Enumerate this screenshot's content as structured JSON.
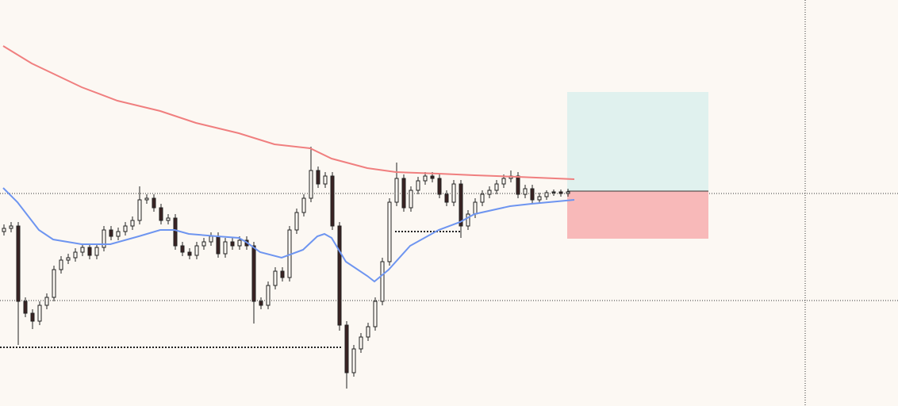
{
  "chart_data": {
    "type": "candlestick",
    "ylim": [
      0,
      512
    ],
    "candles": [
      [
        220,
        229,
        215,
        224
      ],
      [
        224,
        232,
        219,
        227
      ],
      [
        227,
        232,
        77,
        132
      ],
      [
        132,
        137,
        112,
        117
      ],
      [
        117,
        122,
        97,
        107
      ],
      [
        107,
        132,
        102,
        127
      ],
      [
        127,
        142,
        122,
        137
      ],
      [
        137,
        177,
        132,
        172
      ],
      [
        172,
        189,
        167,
        184
      ],
      [
        184,
        192,
        179,
        187
      ],
      [
        187,
        199,
        182,
        194
      ],
      [
        194,
        205,
        189,
        200
      ],
      [
        200,
        205,
        185,
        190
      ],
      [
        190,
        205,
        185,
        200
      ],
      [
        200,
        227,
        195,
        222
      ],
      [
        222,
        227,
        209,
        214
      ],
      [
        214,
        225,
        209,
        220
      ],
      [
        220,
        232,
        215,
        227
      ],
      [
        227,
        239,
        222,
        234
      ],
      [
        234,
        277,
        229,
        260
      ],
      [
        260,
        267,
        255,
        262
      ],
      [
        262,
        267,
        245,
        250
      ],
      [
        250,
        255,
        229,
        234
      ],
      [
        234,
        242,
        229,
        237
      ],
      [
        237,
        242,
        197,
        202
      ],
      [
        202,
        207,
        189,
        194
      ],
      [
        194,
        199,
        185,
        190
      ],
      [
        190,
        207,
        185,
        202
      ],
      [
        202,
        212,
        197,
        207
      ],
      [
        207,
        219,
        202,
        214
      ],
      [
        214,
        219,
        187,
        192
      ],
      [
        192,
        212,
        187,
        207
      ],
      [
        207,
        212,
        197,
        202
      ],
      [
        202,
        214,
        197,
        209
      ],
      [
        209,
        214,
        197,
        202
      ],
      [
        202,
        207,
        104,
        132
      ],
      [
        132,
        137,
        122,
        127
      ],
      [
        127,
        157,
        122,
        152
      ],
      [
        152,
        175,
        147,
        170
      ],
      [
        170,
        175,
        157,
        162
      ],
      [
        162,
        227,
        157,
        222
      ],
      [
        222,
        249,
        217,
        244
      ],
      [
        244,
        267,
        239,
        262
      ],
      [
        262,
        327,
        257,
        297
      ],
      [
        297,
        302,
        275,
        280
      ],
      [
        280,
        295,
        275,
        290
      ],
      [
        290,
        295,
        222,
        227
      ],
      [
        227,
        232,
        95,
        102
      ],
      [
        102,
        107,
        22,
        42
      ],
      [
        42,
        77,
        37,
        72
      ],
      [
        72,
        92,
        67,
        87
      ],
      [
        87,
        105,
        82,
        100
      ],
      [
        100,
        137,
        95,
        132
      ],
      [
        132,
        187,
        127,
        182
      ],
      [
        182,
        262,
        177,
        257
      ],
      [
        257,
        307,
        252,
        287
      ],
      [
        287,
        292,
        245,
        250
      ],
      [
        250,
        277,
        245,
        272
      ],
      [
        272,
        289,
        267,
        284
      ],
      [
        284,
        295,
        279,
        290
      ],
      [
        290,
        295,
        282,
        287
      ],
      [
        287,
        292,
        262,
        267
      ],
      [
        267,
        272,
        252,
        257
      ],
      [
        257,
        285,
        252,
        280
      ],
      [
        280,
        285,
        212,
        227
      ],
      [
        227,
        247,
        222,
        242
      ],
      [
        242,
        262,
        237,
        257
      ],
      [
        257,
        272,
        252,
        267
      ],
      [
        267,
        277,
        262,
        272
      ],
      [
        272,
        285,
        267,
        280
      ],
      [
        280,
        292,
        275,
        287
      ],
      [
        287,
        297,
        282,
        290
      ],
      [
        290,
        295,
        262,
        267
      ],
      [
        267,
        279,
        262,
        274
      ],
      [
        274,
        279,
        255,
        260
      ],
      [
        260,
        269,
        255,
        264
      ],
      [
        264,
        272,
        260,
        269
      ],
      [
        269,
        273,
        265,
        270
      ],
      [
        270,
        273,
        264,
        268
      ],
      [
        268,
        274,
        264,
        270
      ]
    ],
    "bull_color": "#fcf8f3",
    "bear_color": "#3b2323",
    "series": [
      {
        "color": "#f07f7f",
        "x": [
          0,
          4,
          11,
          16,
          22,
          27,
          33,
          38,
          43,
          46,
          51,
          55,
          61,
          66,
          72,
          80
        ],
        "values": [
          454,
          432,
          402,
          385,
          372,
          357,
          344,
          330,
          325,
          312,
          300,
          295,
          293,
          291,
          289,
          286
        ]
      },
      {
        "color": "#6e95f0",
        "x": [
          0,
          2,
          5,
          7,
          11,
          15,
          19,
          22,
          24,
          26,
          30,
          33,
          34,
          36,
          39,
          42,
          44,
          45,
          46,
          48,
          51,
          52,
          54,
          57,
          61,
          64,
          66,
          71,
          74,
          80
        ],
        "values": [
          275,
          257,
          222,
          210,
          204,
          204,
          214,
          222,
          222,
          217,
          214,
          212,
          207,
          194,
          187,
          197,
          214,
          217,
          212,
          182,
          164,
          157,
          172,
          202,
          222,
          232,
          242,
          252,
          255,
          260
        ]
      }
    ],
    "position": {
      "entry": 271,
      "target": 396,
      "stop": 211,
      "profit_color": "#e0f1ee",
      "loss_color": "#f8b9b9"
    }
  }
}
